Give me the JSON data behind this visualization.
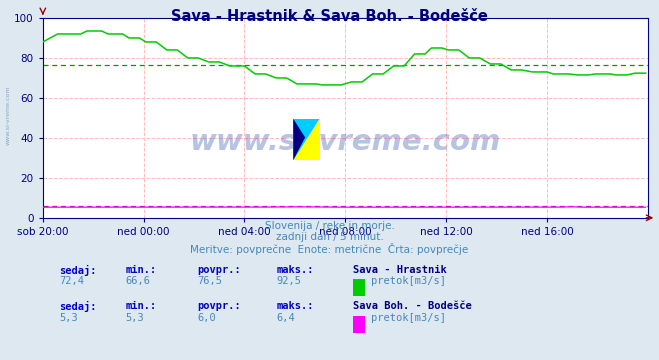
{
  "title": "Sava - Hrastnik & Sava Boh. - Bodešče",
  "title_color": "#000080",
  "bg_color": "#dde8f0",
  "plot_bg_color": "#ffffff",
  "xlabel_ticks": [
    "sob 20:00",
    "ned 00:00",
    "ned 04:00",
    "ned 08:00",
    "ned 12:00",
    "ned 16:00"
  ],
  "xlim": [
    0,
    288
  ],
  "ylim": [
    0,
    100
  ],
  "yticks": [
    0,
    20,
    40,
    60,
    80,
    100
  ],
  "line1_color": "#00cc00",
  "line2_color": "#ff00ff",
  "avg1_color": "#009900",
  "avg2_color": "#cc00cc",
  "avg1_value": 76.5,
  "avg2_value": 6.0,
  "watermark": "www.si-vreme.com",
  "watermark_color": "#3355aa",
  "subtitle1": "Slovenija / reke in morje.",
  "subtitle2": "zadnji dan / 5 minut.",
  "subtitle3": "Meritve: povprečne  Enote: metrične  Črta: povprečje",
  "info1_name": "Sava - Hrastnik",
  "info1_sedaj": "72,4",
  "info1_min": "66,6",
  "info1_povpr": "76,5",
  "info1_maks": "92,5",
  "info1_unit": "pretok[m3/s]",
  "info2_name": "Sava Boh. - Bodešče",
  "info2_sedaj": "5,3",
  "info2_min": "5,3",
  "info2_povpr": "6,0",
  "info2_maks": "6,4",
  "info2_unit": "pretok[m3/s]",
  "axis_color": "#000080",
  "tick_color": "#000080",
  "text_color": "#4488bb",
  "bold_color": "#0000cc",
  "val_color": "#4488bb",
  "name_color": "#000080",
  "side_watermark_color": "#7799aa"
}
